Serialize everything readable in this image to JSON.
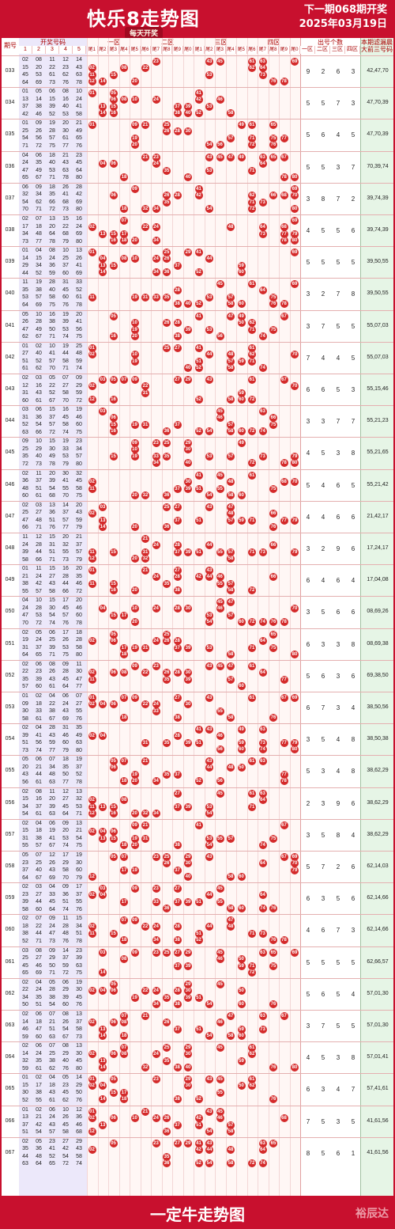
{
  "header": {
    "title": "快乐8走势图",
    "subtitle": "每天开奖",
    "next_draw": "下一期068期开奖",
    "date": "2025年03月19日"
  },
  "columns": {
    "period": "期号",
    "draw_numbers": "开奖号码",
    "draw_sub": [
      "1",
      "2",
      "3",
      "4",
      "5"
    ],
    "zones": [
      "一区",
      "二区",
      "三区",
      "四区"
    ],
    "tail_labels": [
      "尾1",
      "尾2",
      "尾3",
      "尾4",
      "尾5",
      "尾6",
      "尾7",
      "尾8",
      "尾9",
      "尾0",
      "尾1",
      "尾2",
      "尾3",
      "尾4",
      "尾5",
      "尾6",
      "尾7",
      "尾8",
      "尾9",
      "尾0"
    ],
    "count_header": "出号个数",
    "count_sub": [
      "一区",
      "二区",
      "三区",
      "四区"
    ],
    "filter_header": "本期滤漏晨",
    "filter_sub": "大前三号码"
  },
  "rows": [
    {
      "period": "033",
      "counts": [
        "9",
        "2",
        "6",
        "3"
      ],
      "filter": "42,47,70",
      "nums": [
        "02",
        "08",
        "11",
        "12",
        "14",
        "15",
        "20",
        "22",
        "23",
        "43",
        "45",
        "53",
        "61",
        "62",
        "63",
        "64",
        "69",
        "73",
        "76",
        "78"
      ]
    },
    {
      "period": "034",
      "counts": [
        "5",
        "5",
        "7",
        "3"
      ],
      "filter": "47,70,39",
      "nums": [
        "01",
        "05",
        "06",
        "08",
        "10",
        "13",
        "14",
        "15",
        "16",
        "24",
        "37",
        "38",
        "39",
        "40",
        "41",
        "42",
        "46",
        "52",
        "53",
        "58"
      ]
    },
    {
      "period": "035",
      "counts": [
        "5",
        "6",
        "4",
        "5"
      ],
      "filter": "47,70,39",
      "nums": [
        "01",
        "09",
        "19",
        "20",
        "21",
        "25",
        "26",
        "28",
        "30",
        "49",
        "54",
        "56",
        "57",
        "61",
        "65",
        "71",
        "72",
        "75",
        "77",
        "76"
      ]
    },
    {
      "period": "036",
      "counts": [
        "5",
        "5",
        "3",
        "7"
      ],
      "filter": "70,39,74",
      "nums": [
        "04",
        "06",
        "18",
        "21",
        "23",
        "24",
        "35",
        "40",
        "43",
        "45",
        "47",
        "49",
        "53",
        "63",
        "64",
        "65",
        "67",
        "71",
        "78",
        "80"
      ]
    },
    {
      "period": "037",
      "counts": [
        "3",
        "8",
        "7",
        "2"
      ],
      "filter": "39,74,39",
      "nums": [
        "06",
        "09",
        "18",
        "26",
        "28",
        "32",
        "34",
        "35",
        "41",
        "42",
        "54",
        "62",
        "66",
        "68",
        "69",
        "70",
        "71",
        "72",
        "73",
        "80"
      ]
    },
    {
      "period": "038",
      "counts": [
        "4",
        "5",
        "5",
        "6"
      ],
      "filter": "39,74,39",
      "nums": [
        "02",
        "07",
        "13",
        "15",
        "16",
        "17",
        "18",
        "20",
        "22",
        "24",
        "34",
        "48",
        "64",
        "68",
        "69",
        "73",
        "77",
        "78",
        "79",
        "80"
      ]
    },
    {
      "period": "039",
      "counts": [
        "5",
        "5",
        "5",
        "5"
      ],
      "filter": "39,50,55",
      "nums": [
        "01",
        "04",
        "08",
        "10",
        "13",
        "14",
        "15",
        "24",
        "25",
        "26",
        "29",
        "34",
        "36",
        "37",
        "41",
        "44",
        "52",
        "59",
        "60",
        "69"
      ]
    },
    {
      "period": "040",
      "counts": [
        "3",
        "2",
        "7",
        "8"
      ],
      "filter": "39,50,55",
      "nums": [
        "11",
        "19",
        "28",
        "31",
        "33",
        "35",
        "38",
        "40",
        "45",
        "52",
        "53",
        "57",
        "58",
        "60",
        "61",
        "64",
        "69",
        "75",
        "76",
        "78"
      ]
    },
    {
      "period": "041",
      "counts": [
        "3",
        "7",
        "5",
        "5"
      ],
      "filter": "55,07,03",
      "nums": [
        "05",
        "10",
        "16",
        "19",
        "20",
        "26",
        "28",
        "38",
        "39",
        "41",
        "47",
        "49",
        "50",
        "53",
        "56",
        "62",
        "67",
        "71",
        "74",
        "75"
      ]
    },
    {
      "period": "042",
      "counts": [
        "7",
        "4",
        "4",
        "5"
      ],
      "filter": "55,07,03",
      "nums": [
        "01",
        "02",
        "10",
        "19",
        "25",
        "27",
        "40",
        "41",
        "44",
        "48",
        "51",
        "52",
        "57",
        "58",
        "59",
        "61",
        "62",
        "70",
        "71",
        "74"
      ]
    },
    {
      "period": "043",
      "counts": [
        "6",
        "6",
        "5",
        "3"
      ],
      "filter": "55,15,46",
      "nums": [
        "02",
        "03",
        "05",
        "07",
        "09",
        "12",
        "16",
        "22",
        "27",
        "29",
        "31",
        "43",
        "52",
        "58",
        "59",
        "60",
        "61",
        "67",
        "70",
        "72"
      ]
    },
    {
      "period": "044",
      "counts": [
        "3",
        "3",
        "7",
        "7"
      ],
      "filter": "55,21,23",
      "nums": [
        "03",
        "06",
        "15",
        "16",
        "19",
        "31",
        "36",
        "37",
        "45",
        "46",
        "52",
        "54",
        "57",
        "58",
        "60",
        "63",
        "66",
        "72",
        "74",
        "75"
      ]
    },
    {
      "period": "045",
      "counts": [
        "4",
        "5",
        "3",
        "8"
      ],
      "filter": "55,21,65",
      "nums": [
        "09",
        "10",
        "15",
        "19",
        "23",
        "25",
        "29",
        "30",
        "33",
        "34",
        "35",
        "40",
        "49",
        "53",
        "57",
        "72",
        "73",
        "78",
        "79",
        "80"
      ]
    },
    {
      "period": "046",
      "counts": [
        "5",
        "4",
        "6",
        "5"
      ],
      "filter": "55,21,42",
      "nums": [
        "02",
        "11",
        "20",
        "30",
        "32",
        "36",
        "37",
        "39",
        "41",
        "45",
        "48",
        "51",
        "54",
        "55",
        "58",
        "60",
        "61",
        "68",
        "70",
        "75"
      ]
    },
    {
      "period": "047",
      "counts": [
        "4",
        "4",
        "6",
        "6"
      ],
      "filter": "21,42,17",
      "nums": [
        "02",
        "03",
        "13",
        "14",
        "20",
        "25",
        "27",
        "36",
        "37",
        "43",
        "47",
        "48",
        "51",
        "57",
        "59",
        "66",
        "71",
        "76",
        "77",
        "79"
      ]
    },
    {
      "period": "048",
      "counts": [
        "3",
        "2",
        "9",
        "6"
      ],
      "filter": "17,24,17",
      "nums": [
        "11",
        "12",
        "15",
        "20",
        "21",
        "24",
        "28",
        "31",
        "32",
        "37",
        "39",
        "44",
        "51",
        "55",
        "57",
        "58",
        "66",
        "71",
        "73",
        "79"
      ]
    },
    {
      "period": "049",
      "counts": [
        "6",
        "4",
        "6",
        "4"
      ],
      "filter": "17,04,08",
      "nums": [
        "01",
        "11",
        "15",
        "16",
        "20",
        "21",
        "24",
        "27",
        "28",
        "35",
        "38",
        "42",
        "43",
        "44",
        "46",
        "55",
        "57",
        "58",
        "66",
        "72"
      ]
    },
    {
      "period": "050",
      "counts": [
        "3",
        "5",
        "6",
        "6"
      ],
      "filter": "08,69,26",
      "nums": [
        "04",
        "10",
        "15",
        "17",
        "20",
        "24",
        "28",
        "30",
        "45",
        "46",
        "47",
        "53",
        "54",
        "57",
        "60",
        "70",
        "72",
        "74",
        "76",
        "78"
      ]
    },
    {
      "period": "051",
      "counts": [
        "6",
        "3",
        "3",
        "8"
      ],
      "filter": "08,69,38",
      "nums": [
        "02",
        "05",
        "06",
        "17",
        "18",
        "19",
        "24",
        "25",
        "26",
        "28",
        "31",
        "37",
        "39",
        "53",
        "58",
        "64",
        "65",
        "71",
        "75",
        "80"
      ]
    },
    {
      "period": "052",
      "counts": [
        "5",
        "6",
        "3",
        "6"
      ],
      "filter": "69,38,50",
      "nums": [
        "02",
        "06",
        "08",
        "09",
        "11",
        "22",
        "23",
        "26",
        "28",
        "30",
        "35",
        "39",
        "43",
        "45",
        "47",
        "57",
        "60",
        "61",
        "64",
        "77"
      ]
    },
    {
      "period": "053",
      "counts": [
        "6",
        "7",
        "3",
        "4"
      ],
      "filter": "38,50,56",
      "nums": [
        "01",
        "02",
        "04",
        "06",
        "07",
        "09",
        "18",
        "22",
        "24",
        "27",
        "30",
        "33",
        "38",
        "43",
        "55",
        "58",
        "61",
        "67",
        "69",
        "76"
      ]
    },
    {
      "period": "054",
      "counts": [
        "3",
        "5",
        "4",
        "8"
      ],
      "filter": "38,50,38",
      "nums": [
        "02",
        "04",
        "28",
        "31",
        "35",
        "39",
        "41",
        "43",
        "46",
        "49",
        "51",
        "56",
        "59",
        "60",
        "63",
        "73",
        "74",
        "77",
        "79",
        "80"
      ]
    },
    {
      "period": "055",
      "counts": [
        "5",
        "3",
        "4",
        "8"
      ],
      "filter": "38,62,29",
      "nums": [
        "05",
        "06",
        "07",
        "18",
        "19",
        "20",
        "21",
        "34",
        "35",
        "37",
        "43",
        "44",
        "48",
        "50",
        "52",
        "56",
        "61",
        "63",
        "77",
        "78"
      ]
    },
    {
      "period": "056",
      "counts": [
        "2",
        "3",
        "9",
        "6"
      ],
      "filter": "38,62,29",
      "nums": [
        "02",
        "08",
        "11",
        "12",
        "13",
        "15",
        "16",
        "20",
        "27",
        "32",
        "34",
        "37",
        "39",
        "45",
        "53",
        "54",
        "61",
        "63",
        "64",
        "71"
      ]
    },
    {
      "period": "057",
      "counts": [
        "3",
        "5",
        "8",
        "4"
      ],
      "filter": "38,62,29",
      "nums": [
        "02",
        "04",
        "06",
        "09",
        "13",
        "15",
        "18",
        "19",
        "20",
        "21",
        "31",
        "38",
        "41",
        "53",
        "54",
        "55",
        "57",
        "67",
        "74",
        "75"
      ]
    },
    {
      "period": "058",
      "counts": [
        "5",
        "7",
        "2",
        "6"
      ],
      "filter": "62,14,03",
      "nums": [
        "05",
        "07",
        "12",
        "17",
        "19",
        "23",
        "25",
        "26",
        "29",
        "30",
        "37",
        "40",
        "43",
        "58",
        "60",
        "64",
        "67",
        "69",
        "70",
        "79"
      ]
    },
    {
      "period": "059",
      "counts": [
        "6",
        "3",
        "5",
        "6"
      ],
      "filter": "62,14,66",
      "nums": [
        "02",
        "03",
        "04",
        "09",
        "17",
        "23",
        "27",
        "33",
        "36",
        "37",
        "39",
        "44",
        "45",
        "51",
        "55",
        "58",
        "60",
        "64",
        "74",
        "76"
      ]
    },
    {
      "period": "060",
      "counts": [
        "4",
        "6",
        "7",
        "3"
      ],
      "filter": "62,14,66",
      "nums": [
        "02",
        "07",
        "09",
        "11",
        "15",
        "18",
        "22",
        "24",
        "28",
        "34",
        "38",
        "44",
        "47",
        "48",
        "51",
        "52",
        "71",
        "73",
        "76",
        "78"
      ]
    },
    {
      "period": "061",
      "counts": [
        "5",
        "5",
        "5",
        "5"
      ],
      "filter": "62,66,57",
      "nums": [
        "03",
        "08",
        "09",
        "14",
        "23",
        "25",
        "27",
        "29",
        "37",
        "39",
        "45",
        "46",
        "50",
        "59",
        "63",
        "65",
        "69",
        "71",
        "72",
        "75"
      ]
    },
    {
      "period": "062",
      "counts": [
        "5",
        "6",
        "5",
        "4"
      ],
      "filter": "57,01,30",
      "nums": [
        "02",
        "04",
        "05",
        "06",
        "19",
        "22",
        "24",
        "28",
        "29",
        "30",
        "34",
        "35",
        "38",
        "39",
        "45",
        "50",
        "51",
        "54",
        "60",
        "76"
      ]
    },
    {
      "period": "063",
      "counts": [
        "3",
        "7",
        "5",
        "5"
      ],
      "filter": "57,01,30",
      "nums": [
        "02",
        "06",
        "07",
        "08",
        "13",
        "14",
        "18",
        "21",
        "26",
        "37",
        "46",
        "47",
        "51",
        "54",
        "58",
        "59",
        "60",
        "63",
        "67",
        "73"
      ]
    },
    {
      "period": "064",
      "counts": [
        "4",
        "5",
        "3",
        "8"
      ],
      "filter": "57,01,41",
      "nums": [
        "02",
        "06",
        "07",
        "08",
        "13",
        "14",
        "24",
        "25",
        "29",
        "30",
        "32",
        "35",
        "38",
        "40",
        "45",
        "59",
        "61",
        "62",
        "76",
        "80"
      ]
    },
    {
      "period": "065",
      "counts": [
        "6",
        "3",
        "4",
        "7"
      ],
      "filter": "57,41,61",
      "nums": [
        "01",
        "02",
        "04",
        "05",
        "14",
        "15",
        "17",
        "18",
        "23",
        "29",
        "30",
        "38",
        "43",
        "45",
        "50",
        "52",
        "55",
        "61",
        "62",
        "76"
      ]
    },
    {
      "period": "066",
      "counts": [
        "7",
        "5",
        "3",
        "5"
      ],
      "filter": "41,61,56",
      "nums": [
        "01",
        "02",
        "06",
        "10",
        "12",
        "13",
        "21",
        "24",
        "26",
        "36",
        "37",
        "42",
        "43",
        "45",
        "46",
        "51",
        "54",
        "57",
        "58",
        "68"
      ]
    },
    {
      "period": "067",
      "counts": [
        "8",
        "5",
        "6",
        "1"
      ],
      "filter": "41,61,56",
      "nums": [
        "02",
        "05",
        "23",
        "27",
        "29",
        "35",
        "36",
        "41",
        "42",
        "43",
        "44",
        "48",
        "52",
        "54",
        "58",
        "63",
        "64",
        "65",
        "72",
        "74"
      ]
    }
  ],
  "footer": {
    "title": "一定牛走势图",
    "watermark": "裕辰达"
  },
  "colors": {
    "brand": "#c8102e",
    "ball": "#d42a2a",
    "nums_bg": "#ece8fa",
    "filter_bg": "#e6f5e6"
  }
}
